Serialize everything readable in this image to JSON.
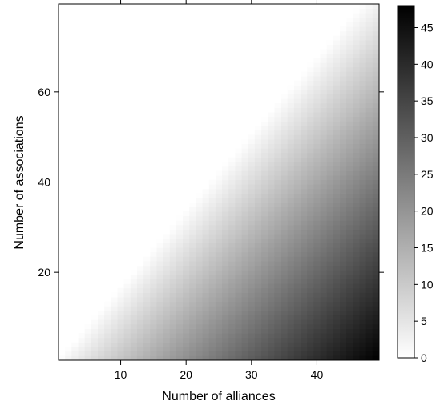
{
  "chart_data": {
    "type": "heatmap",
    "title": "",
    "xlabel": "Number of alliances",
    "ylabel": "Number of associations",
    "x_range": [
      0.5,
      49.5
    ],
    "y_range": [
      0.5,
      79.5
    ],
    "x_ticks": [
      10,
      20,
      30,
      40
    ],
    "y_ticks": [
      20,
      40,
      60
    ],
    "colorbar": {
      "range": [
        0,
        48
      ],
      "ticks": [
        0,
        5,
        10,
        15,
        20,
        25,
        30,
        35,
        40,
        45
      ],
      "low_color": "#ffffff",
      "high_color": "#000000"
    },
    "colormap": "white-to-black (gray)",
    "grid": false,
    "value_model": "value increases with alliances and decreases with associations; cells are 0 (white) for associations >= approximately 1.7 x alliances; lower-right corner approx 48"
  }
}
